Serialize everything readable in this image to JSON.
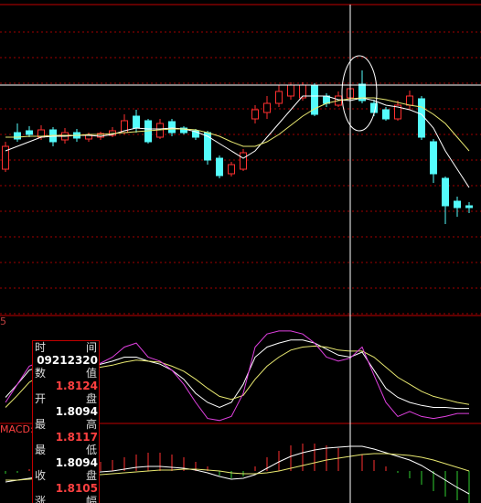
{
  "chart_data": [
    {
      "type": "candlestick",
      "ylim": [
        0,
        340
      ],
      "up_color": "#ff3030",
      "down_color": "#54fcfc",
      "open": [
        160,
        200,
        202,
        195,
        203,
        192,
        200,
        193,
        195,
        197,
        200,
        218,
        213,
        195,
        212,
        205,
        202,
        200,
        172,
        155,
        160,
        215,
        222,
        232,
        240,
        238,
        252,
        240,
        230,
        238,
        253,
        232,
        225,
        215,
        230,
        237,
        190,
        150,
        125,
        120
      ],
      "close": [
        185,
        193,
        198,
        203,
        190,
        200,
        194,
        197,
        199,
        202,
        213,
        205,
        190,
        210,
        200,
        200,
        195,
        170,
        153,
        165,
        178,
        225,
        232,
        245,
        252,
        252,
        220,
        232,
        240,
        248,
        235,
        222,
        215,
        230,
        240,
        195,
        155,
        120,
        118,
        118
      ],
      "high": [
        190,
        210,
        207,
        208,
        206,
        205,
        204,
        200,
        201,
        206,
        220,
        225,
        215,
        215,
        215,
        207,
        204,
        202,
        175,
        168,
        182,
        230,
        240,
        252,
        255,
        255,
        254,
        243,
        245,
        255,
        268,
        236,
        228,
        235,
        246,
        240,
        193,
        152,
        130,
        124
      ],
      "low": [
        157,
        190,
        195,
        192,
        185,
        188,
        190,
        190,
        192,
        195,
        198,
        200,
        188,
        193,
        196,
        198,
        192,
        165,
        150,
        152,
        158,
        210,
        215,
        228,
        236,
        235,
        218,
        228,
        228,
        235,
        232,
        218,
        213,
        213,
        225,
        192,
        145,
        100,
        108,
        112
      ],
      "series": [
        {
          "color": "#ffffff",
          "values": [
            180,
            185,
            190,
            195,
            196,
            196,
            197,
            197,
            196,
            198,
            202,
            205,
            204,
            204,
            205,
            204,
            201,
            196,
            188,
            180,
            172,
            180,
            195,
            210,
            225,
            240,
            240,
            240,
            236,
            235,
            238,
            235,
            230,
            228,
            225,
            220,
            205,
            180,
            160,
            140
          ]
        },
        {
          "color": "#e8e870",
          "values": [
            195,
            195,
            196,
            196,
            197,
            197,
            197,
            198,
            198,
            199,
            200,
            201,
            202,
            203,
            204,
            204,
            203,
            200,
            196,
            190,
            185,
            185,
            190,
            198,
            208,
            218,
            226,
            232,
            235,
            237,
            238,
            238,
            236,
            233,
            230,
            228,
            220,
            210,
            195,
            180
          ]
        }
      ]
    },
    {
      "type": "line",
      "label": "5",
      "ylim": [
        0,
        100
      ],
      "series": [
        {
          "color": "#ffffff",
          "values": [
            25,
            38,
            52,
            56,
            55,
            56,
            55,
            56,
            58,
            61,
            65,
            65,
            61,
            58,
            52,
            43,
            29,
            20,
            15,
            20,
            38,
            65,
            75,
            79,
            82,
            82,
            79,
            73,
            67,
            65,
            70,
            52,
            34,
            25,
            20,
            17,
            15,
            15,
            14,
            14
          ]
        },
        {
          "color": "#e8e870",
          "values": [
            15,
            27,
            40,
            47,
            51,
            53,
            54,
            55,
            55,
            57,
            60,
            62,
            61,
            60,
            56,
            51,
            43,
            34,
            26,
            23,
            27,
            43,
            56,
            65,
            72,
            75,
            76,
            75,
            72,
            71,
            71,
            65,
            55,
            45,
            38,
            31,
            26,
            23,
            20,
            18
          ]
        },
        {
          "color": "#e040e0",
          "values": [
            20,
            38,
            56,
            61,
            52,
            58,
            55,
            56,
            59,
            65,
            75,
            79,
            65,
            61,
            52,
            38,
            20,
            4,
            2,
            6,
            29,
            75,
            88,
            91,
            91,
            88,
            79,
            65,
            61,
            64,
            75,
            47,
            20,
            6,
            11,
            6,
            4,
            6,
            9,
            9
          ]
        }
      ]
    },
    {
      "type": "macd",
      "label": "MACD:",
      "ylim": [
        -35,
        50
      ],
      "up_color": "#ff3030",
      "down_color": "#30d030",
      "values": [
        -3,
        -2,
        2,
        4,
        5,
        6,
        6,
        8,
        10,
        12,
        15,
        18,
        20,
        20,
        18,
        15,
        10,
        5,
        -5,
        -8,
        -6,
        5,
        15,
        22,
        28,
        30,
        30,
        28,
        25,
        22,
        18,
        12,
        5,
        -2,
        -8,
        -15,
        -22,
        -28,
        -32,
        -35
      ],
      "series": [
        {
          "color": "#ffffff",
          "values": [
            -12,
            -10,
            -8,
            -6,
            -5,
            -4,
            -3,
            -2,
            -1,
            0,
            2,
            4,
            5,
            5,
            4,
            3,
            1,
            -2,
            -6,
            -9,
            -8,
            -4,
            3,
            10,
            16,
            20,
            23,
            25,
            26,
            27,
            27,
            24,
            20,
            16,
            12,
            6,
            -2,
            -10,
            -18,
            -25
          ]
        },
        {
          "color": "#e8e870",
          "values": [
            -10,
            -10,
            -9,
            -8,
            -7,
            -6,
            -5,
            -4,
            -4,
            -3,
            -2,
            -1,
            0,
            1,
            1,
            2,
            2,
            1,
            0,
            -2,
            -3,
            -3,
            -2,
            0,
            3,
            6,
            9,
            12,
            14,
            16,
            18,
            19,
            19,
            18,
            17,
            15,
            12,
            8,
            4,
            0
          ]
        }
      ]
    }
  ],
  "info_panel": {
    "rows": [
      {
        "label": "时间",
        "value": "09212320"
      },
      {
        "label": "数值",
        "value": "1.8124"
      },
      {
        "label": "开盘",
        "value": "1.8094"
      },
      {
        "label": "最高",
        "value": "1.8117"
      },
      {
        "label": "最低",
        "value": "1.8094"
      },
      {
        "label": "收盘",
        "value": "1.8105"
      },
      {
        "label": "涨幅"
      }
    ]
  }
}
